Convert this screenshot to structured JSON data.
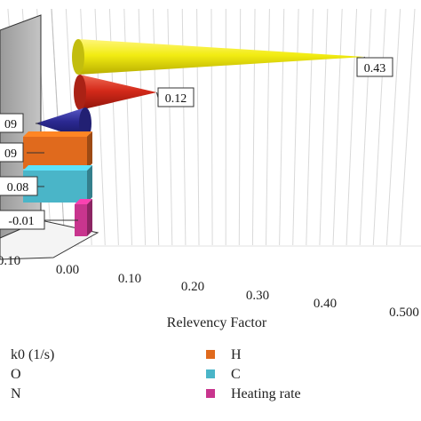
{
  "chart_data": {
    "type": "bar",
    "orientation": "horizontal",
    "style": "3d-cone-and-box",
    "xlabel": "Relevency Factor",
    "x_ticks": [
      "0.10",
      "0.00",
      "0.10",
      "0.20",
      "0.30",
      "0.40",
      "0.500"
    ],
    "xlim": [
      -0.1,
      0.5
    ],
    "grid": true,
    "series": [
      {
        "name": "k0 (1/s)",
        "value": 0.43,
        "label": "0.43",
        "shape": "cone",
        "color": "#f2ec12"
      },
      {
        "name": "O",
        "value": 0.12,
        "label": "0.12",
        "shape": "cone",
        "color": "#d42a1a"
      },
      {
        "name": "N",
        "value": 0.09,
        "label": "09",
        "shape": "cone",
        "color": "#2a2890"
      },
      {
        "name": "H",
        "value": 0.09,
        "label": "09",
        "shape": "box",
        "color": "#e06a1d"
      },
      {
        "name": "C",
        "value": 0.08,
        "label": "0.08",
        "shape": "box",
        "color": "#4ab5c8"
      },
      {
        "name": "Heating rate",
        "value": -0.01,
        "label": "-0.01",
        "shape": "box",
        "color": "#c8358e"
      }
    ],
    "legend": {
      "position": "bottom",
      "items": [
        {
          "name": "k0 (1/s)",
          "icon": "none"
        },
        {
          "name": "O",
          "icon": "none"
        },
        {
          "name": "N",
          "icon": "none"
        },
        {
          "name": "H",
          "color": "#e06a1d"
        },
        {
          "name": "C",
          "color": "#4ab5c8"
        },
        {
          "name": "Heating rate",
          "color": "#c8358e"
        }
      ]
    }
  }
}
